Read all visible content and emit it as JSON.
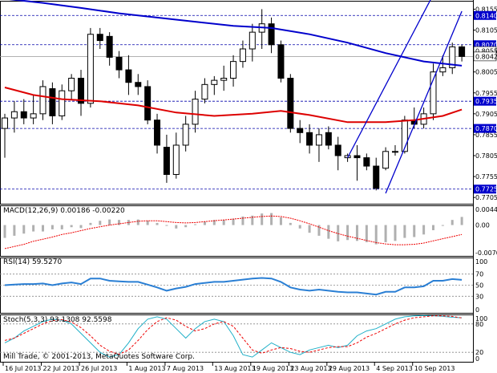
{
  "chart_data": [
    {
      "type": "candlestick",
      "pane": "main",
      "price_axis": [
        "0.8155",
        "0.8105",
        "0.8055",
        "0.8005",
        "0.7955",
        "0.7905",
        "0.7855",
        "0.7805",
        "0.7755",
        "0.7705"
      ],
      "ylim": [
        0.769,
        0.8175
      ],
      "price_tags": [
        {
          "text": "0.8140",
          "value": 0.814,
          "color": "#0000cc"
        },
        {
          "text": "0.8070",
          "value": 0.807,
          "color": "#0000cc"
        },
        {
          "text": "0.8055",
          "value": 0.8055,
          "color": "#ffffff"
        },
        {
          "text": "0.8042",
          "value": 0.8042,
          "color": "#ffffff"
        },
        {
          "text": "0.7935",
          "value": 0.7935,
          "color": "#0000cc"
        },
        {
          "text": "0.7870",
          "value": 0.787,
          "color": "#0000cc"
        },
        {
          "text": "0.7725",
          "value": 0.7725,
          "color": "#0000cc"
        }
      ],
      "horizontal_levels": [
        0.814,
        0.807,
        0.7935,
        0.787,
        0.7725
      ],
      "candles": [
        {
          "o": 0.787,
          "h": 0.7905,
          "l": 0.78,
          "c": 0.7895
        },
        {
          "o": 0.7895,
          "h": 0.7935,
          "l": 0.786,
          "c": 0.791
        },
        {
          "o": 0.791,
          "h": 0.794,
          "l": 0.788,
          "c": 0.7895
        },
        {
          "o": 0.7895,
          "h": 0.795,
          "l": 0.788,
          "c": 0.7905
        },
        {
          "o": 0.7905,
          "h": 0.7985,
          "l": 0.789,
          "c": 0.797
        },
        {
          "o": 0.7965,
          "h": 0.798,
          "l": 0.788,
          "c": 0.79
        },
        {
          "o": 0.79,
          "h": 0.7975,
          "l": 0.789,
          "c": 0.796
        },
        {
          "o": 0.796,
          "h": 0.8,
          "l": 0.794,
          "c": 0.799
        },
        {
          "o": 0.799,
          "h": 0.801,
          "l": 0.79,
          "c": 0.793
        },
        {
          "o": 0.793,
          "h": 0.811,
          "l": 0.792,
          "c": 0.8095
        },
        {
          "o": 0.8095,
          "h": 0.811,
          "l": 0.806,
          "c": 0.808
        },
        {
          "o": 0.809,
          "h": 0.81,
          "l": 0.802,
          "c": 0.804
        },
        {
          "o": 0.804,
          "h": 0.8055,
          "l": 0.799,
          "c": 0.801
        },
        {
          "o": 0.801,
          "h": 0.8045,
          "l": 0.795,
          "c": 0.798
        },
        {
          "o": 0.798,
          "h": 0.8,
          "l": 0.795,
          "c": 0.797
        },
        {
          "o": 0.797,
          "h": 0.7985,
          "l": 0.788,
          "c": 0.789
        },
        {
          "o": 0.789,
          "h": 0.7905,
          "l": 0.781,
          "c": 0.783
        },
        {
          "o": 0.7825,
          "h": 0.7855,
          "l": 0.774,
          "c": 0.776
        },
        {
          "o": 0.776,
          "h": 0.786,
          "l": 0.775,
          "c": 0.783
        },
        {
          "o": 0.783,
          "h": 0.79,
          "l": 0.7815,
          "c": 0.788
        },
        {
          "o": 0.788,
          "h": 0.796,
          "l": 0.786,
          "c": 0.794
        },
        {
          "o": 0.794,
          "h": 0.799,
          "l": 0.793,
          "c": 0.7975
        },
        {
          "o": 0.7975,
          "h": 0.7995,
          "l": 0.795,
          "c": 0.7985
        },
        {
          "o": 0.7985,
          "h": 0.802,
          "l": 0.796,
          "c": 0.799
        },
        {
          "o": 0.799,
          "h": 0.8045,
          "l": 0.797,
          "c": 0.803
        },
        {
          "o": 0.803,
          "h": 0.808,
          "l": 0.8015,
          "c": 0.806
        },
        {
          "o": 0.806,
          "h": 0.812,
          "l": 0.803,
          "c": 0.81
        },
        {
          "o": 0.81,
          "h": 0.8155,
          "l": 0.806,
          "c": 0.812
        },
        {
          "o": 0.812,
          "h": 0.8135,
          "l": 0.805,
          "c": 0.807
        },
        {
          "o": 0.807,
          "h": 0.808,
          "l": 0.798,
          "c": 0.799
        },
        {
          "o": 0.799,
          "h": 0.8,
          "l": 0.786,
          "c": 0.787
        },
        {
          "o": 0.787,
          "h": 0.789,
          "l": 0.7835,
          "c": 0.786
        },
        {
          "o": 0.786,
          "h": 0.788,
          "l": 0.781,
          "c": 0.783
        },
        {
          "o": 0.783,
          "h": 0.787,
          "l": 0.779,
          "c": 0.7855
        },
        {
          "o": 0.786,
          "h": 0.7875,
          "l": 0.782,
          "c": 0.783
        },
        {
          "o": 0.783,
          "h": 0.785,
          "l": 0.777,
          "c": 0.7805
        },
        {
          "o": 0.78,
          "h": 0.781,
          "l": 0.779,
          "c": 0.7805
        },
        {
          "o": 0.7805,
          "h": 0.783,
          "l": 0.7745,
          "c": 0.78
        },
        {
          "o": 0.78,
          "h": 0.781,
          "l": 0.777,
          "c": 0.778
        },
        {
          "o": 0.778,
          "h": 0.78,
          "l": 0.7722,
          "c": 0.7727
        },
        {
          "o": 0.7775,
          "h": 0.7825,
          "l": 0.777,
          "c": 0.7815
        },
        {
          "o": 0.7815,
          "h": 0.783,
          "l": 0.7805,
          "c": 0.7815
        },
        {
          "o": 0.7815,
          "h": 0.79,
          "l": 0.781,
          "c": 0.789
        },
        {
          "o": 0.789,
          "h": 0.792,
          "l": 0.787,
          "c": 0.788
        },
        {
          "o": 0.788,
          "h": 0.792,
          "l": 0.787,
          "c": 0.7905
        },
        {
          "o": 0.7905,
          "h": 0.8025,
          "l": 0.789,
          "c": 0.8005
        },
        {
          "o": 0.8005,
          "h": 0.8045,
          "l": 0.7995,
          "c": 0.8015
        },
        {
          "o": 0.8015,
          "h": 0.8075,
          "l": 0.8,
          "c": 0.8065
        },
        {
          "o": 0.8065,
          "h": 0.807,
          "l": 0.803,
          "c": 0.8042
        }
      ],
      "series": [
        {
          "role": "moving-average",
          "color": "#0000cc",
          "line": [
            [
              0,
              0.818
            ],
            [
              4,
              0.817
            ],
            [
              8,
              0.8158
            ],
            [
              12,
              0.8145
            ],
            [
              16,
              0.8135
            ],
            [
              20,
              0.8125
            ],
            [
              24,
              0.8115
            ],
            [
              28,
              0.811
            ],
            [
              32,
              0.8095
            ],
            [
              36,
              0.8075
            ],
            [
              40,
              0.805
            ],
            [
              44,
              0.803
            ],
            [
              48,
              0.802
            ]
          ]
        },
        {
          "role": "moving-average",
          "color": "#dd0000",
          "line": [
            [
              0,
              0.7968
            ],
            [
              3,
              0.795
            ],
            [
              6,
              0.794
            ],
            [
              10,
              0.7935
            ],
            [
              14,
              0.7925
            ],
            [
              18,
              0.7908
            ],
            [
              22,
              0.79
            ],
            [
              26,
              0.7905
            ],
            [
              29,
              0.7912
            ],
            [
              32,
              0.7902
            ],
            [
              36,
              0.7885
            ],
            [
              40,
              0.7885
            ],
            [
              43,
              0.789
            ],
            [
              46,
              0.79
            ],
            [
              48,
              0.7915
            ]
          ]
        }
      ],
      "trend_channel": {
        "color": "#0000cc",
        "lower": [
          [
            40,
            0.7715
          ],
          [
            48,
            0.815
          ]
        ],
        "upper": [
          [
            36,
            0.78
          ],
          [
            48,
            0.832
          ]
        ]
      }
    },
    {
      "type": "bar",
      "pane": "MACD",
      "label": "MACD(12,26,9) 0.00186 -0.00220",
      "axis_labels": [
        "0.00443",
        "0.00",
        "-0.00701"
      ],
      "ylim": [
        -0.0072,
        0.0046
      ],
      "histogram": [
        -0.003,
        -0.0025,
        -0.002,
        -0.0015,
        -0.0015,
        -0.001,
        -0.001,
        -0.0005,
        -0.0007,
        0.0005,
        0.001,
        0.0013,
        0.0012,
        0.0012,
        0.0013,
        0.001,
        0.0005,
        -0.0002,
        -0.0008,
        -0.0005,
        0.0002,
        0.0008,
        0.0012,
        0.0012,
        0.0015,
        0.002,
        0.0022,
        0.0027,
        0.0028,
        0.0018,
        0.0005,
        -0.0008,
        -0.0018,
        -0.0025,
        -0.0032,
        -0.0038,
        -0.0035,
        -0.0037,
        -0.004,
        -0.0045,
        -0.004,
        -0.0037,
        -0.003,
        -0.0028,
        -0.0022,
        -0.0012,
        -0.0002,
        0.0012,
        0.0019
      ],
      "signal": [
        -0.0055,
        -0.005,
        -0.0045,
        -0.0038,
        -0.0033,
        -0.0028,
        -0.0022,
        -0.0018,
        -0.0013,
        -0.0008,
        -0.0004,
        0.0,
        0.0003,
        0.0006,
        0.0009,
        0.001,
        0.001,
        0.0008,
        0.0006,
        0.0005,
        0.0006,
        0.0008,
        0.001,
        0.0012,
        0.0014,
        0.0016,
        0.0018,
        0.002,
        0.0021,
        0.002,
        0.0016,
        0.001,
        0.0003,
        -0.0005,
        -0.0013,
        -0.002,
        -0.0026,
        -0.0031,
        -0.0036,
        -0.0041,
        -0.0044,
        -0.0046,
        -0.0046,
        -0.0045,
        -0.0042,
        -0.0037,
        -0.0032,
        -0.0027,
        -0.0022
      ]
    },
    {
      "type": "line",
      "pane": "RSI",
      "label": "RSI(14) 59.5270",
      "axis_labels": [
        "100",
        "70",
        "50",
        "30",
        "0"
      ],
      "ylim": [
        0,
        100
      ],
      "levels": [
        70,
        50,
        30
      ],
      "values": [
        50,
        51,
        52,
        52,
        53,
        50,
        53,
        55,
        52,
        62,
        62,
        58,
        57,
        56,
        56,
        51,
        46,
        40,
        44,
        47,
        52,
        54,
        56,
        56,
        58,
        60,
        62,
        63,
        62,
        56,
        46,
        42,
        40,
        42,
        40,
        38,
        37,
        37,
        35,
        33,
        38,
        38,
        46,
        46,
        48,
        58,
        58,
        61,
        59.5
      ]
    },
    {
      "type": "line",
      "pane": "Stochastic",
      "label": "Stoch(5,3,3) 93.1308 92.5598",
      "axis_labels": [
        "100",
        "80",
        "20",
        "0"
      ],
      "ylim": [
        0,
        100
      ],
      "levels": [
        80,
        20
      ],
      "main": [
        40,
        50,
        65,
        75,
        85,
        90,
        88,
        80,
        60,
        40,
        20,
        10,
        15,
        40,
        70,
        90,
        95,
        90,
        70,
        50,
        70,
        85,
        90,
        85,
        55,
        15,
        10,
        25,
        40,
        30,
        20,
        15,
        25,
        30,
        35,
        30,
        35,
        55,
        65,
        70,
        80,
        90,
        95,
        97,
        98,
        97,
        96,
        94,
        93.1
      ],
      "signal": [
        45,
        50,
        60,
        70,
        80,
        87,
        89,
        84,
        72,
        55,
        35,
        22,
        16,
        25,
        45,
        68,
        85,
        93,
        88,
        75,
        65,
        70,
        80,
        85,
        75,
        50,
        25,
        18,
        25,
        30,
        28,
        22,
        20,
        25,
        30,
        32,
        32,
        40,
        52,
        60,
        70,
        80,
        88,
        93,
        95,
        97,
        97,
        96,
        92.6
      ]
    }
  ],
  "x_axis_labels": [
    "16 Jul 2013",
    "22 Jul 2013",
    "26 Jul 2013",
    "1 Aug 2013",
    "7 Aug 2013",
    "13 Aug 2013",
    "19 Aug 2013",
    "23 Aug 2013",
    "29 Aug 2013",
    "4 Sep 2013",
    "10 Sep 2013"
  ],
  "copyright": "Mill Trade, © 2001-2013, MetaQuotes Software Corp."
}
